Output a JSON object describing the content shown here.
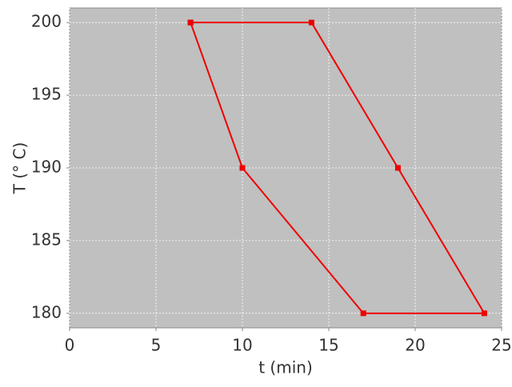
{
  "chart_data": {
    "type": "line",
    "x_label": "t (min)",
    "y_label": "T (° C)",
    "x": [
      7,
      14,
      19,
      24,
      17,
      10,
      7
    ],
    "values": [
      200,
      200,
      190,
      180,
      180,
      190,
      200
    ],
    "color": "#ee0000",
    "marker": "square",
    "xlim": [
      0,
      25
    ],
    "xticks": [
      0,
      5,
      10,
      15,
      20,
      25
    ],
    "ylim": [
      179,
      201
    ],
    "yticks": [
      180,
      185,
      190,
      195,
      200
    ],
    "grid": true,
    "background": "#c0c0c0"
  }
}
